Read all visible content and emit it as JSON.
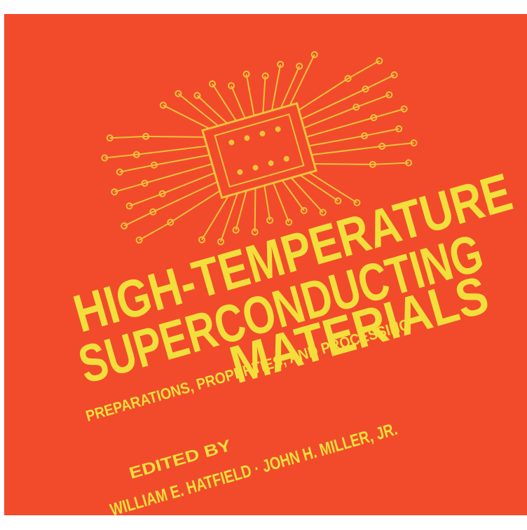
{
  "cover": {
    "title_lines": [
      "HIGH-TEMPERATURE",
      "SUPERCONDUCTING",
      "MATERIALS"
    ],
    "subtitle": "PREPARATIONS, PROPERTIES, AND PROCESSING",
    "editor_label": "EDITED BY",
    "editors": "WILLIAM E. HATFIELD · JOHN H. MILLER, JR."
  }
}
